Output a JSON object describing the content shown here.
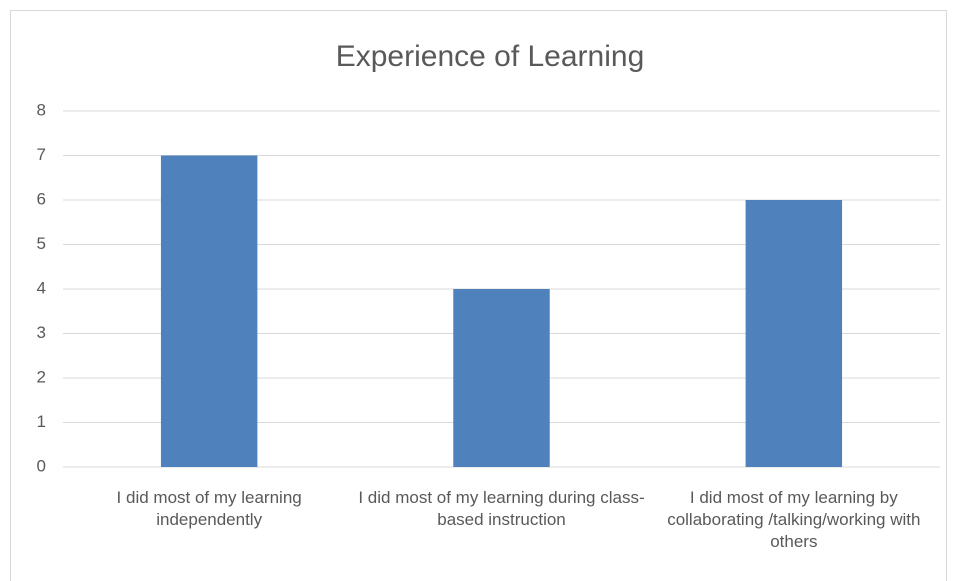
{
  "chart_data": {
    "type": "bar",
    "title": "Experience of Learning",
    "categories": [
      "I did most of my learning independently",
      "I did most of my learning during class-based instruction",
      "I did most of my learning by collaborating /talking/working with others"
    ],
    "values": [
      7,
      4,
      6
    ],
    "color": "#4f81bd",
    "ylim": [
      0,
      8
    ],
    "yticks": [
      0,
      1,
      2,
      3,
      4,
      5,
      6,
      7,
      8
    ],
    "grid": true
  }
}
